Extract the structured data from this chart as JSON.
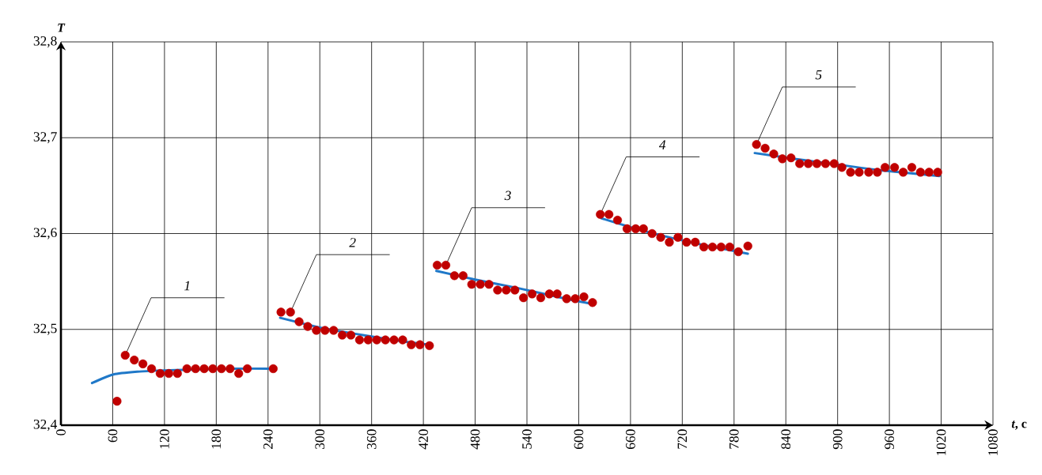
{
  "chart_data": {
    "type": "scatter",
    "xlabel": "*t*, c",
    "ylabel": "T",
    "xlim": [
      0,
      1080
    ],
    "ylim": [
      32.4,
      32.8
    ],
    "xticks": [
      0,
      60,
      120,
      180,
      240,
      300,
      360,
      420,
      480,
      540,
      600,
      660,
      720,
      780,
      840,
      900,
      960,
      1020,
      1080
    ],
    "yticks": [
      {
        "value": 32.4,
        "label": "32,4"
      },
      {
        "value": 32.5,
        "label": "32,5"
      },
      {
        "value": 32.6,
        "label": "32,6"
      },
      {
        "value": 32.7,
        "label": "32,7"
      },
      {
        "value": 32.8,
        "label": "32,8"
      }
    ],
    "grid": true,
    "series": [
      {
        "type": "line",
        "color": "#1f78c8",
        "x": [
          36,
          61,
          91,
          113,
          150,
          200,
          241
        ],
        "values": [
          32.444,
          32.453,
          32.456,
          32.457,
          32.458,
          32.459,
          32.459
        ]
      },
      {
        "type": "line",
        "color": "#1f78c8",
        "x": [
          254,
          300,
          350,
          400,
          427
        ],
        "values": [
          32.512,
          32.502,
          32.494,
          32.487,
          32.484
        ]
      },
      {
        "type": "line",
        "color": "#1f78c8",
        "x": [
          435,
          480,
          530,
          580,
          613
        ],
        "values": [
          32.561,
          32.552,
          32.543,
          32.533,
          32.527
        ]
      },
      {
        "type": "line",
        "color": "#1f78c8",
        "x": [
          626,
          670,
          710,
          750,
          796
        ],
        "values": [
          32.616,
          32.604,
          32.595,
          32.587,
          32.579
        ]
      },
      {
        "type": "line",
        "color": "#1f78c8",
        "x": [
          804,
          850,
          900,
          950,
          1018
        ],
        "values": [
          32.684,
          32.678,
          32.672,
          32.666,
          32.66
        ]
      },
      {
        "color": "#c00000",
        "x": [
          65,
          74.5,
          85,
          95,
          105,
          115,
          125,
          135,
          146,
          156,
          166,
          176,
          186,
          196,
          206,
          216,
          246,
          255,
          266,
          276,
          286,
          296,
          306,
          316,
          326,
          336,
          346,
          356,
          366,
          376,
          386,
          396,
          406,
          416,
          427,
          436,
          446,
          456,
          466,
          476,
          486,
          496,
          506,
          516,
          526,
          536,
          546,
          556,
          566,
          575,
          586,
          596,
          606,
          616,
          625,
          635,
          645,
          656,
          666,
          675,
          685,
          695,
          705,
          715,
          725,
          735,
          745,
          755,
          765,
          775,
          785,
          796,
          806,
          816,
          826,
          836,
          846,
          856,
          866,
          876,
          886,
          896,
          905,
          915,
          925,
          936,
          946,
          955,
          966,
          976,
          986,
          996,
          1006,
          1016
        ],
        "values": [
          32.425,
          32.473,
          32.468,
          32.464,
          32.459,
          32.454,
          32.454,
          32.454,
          32.459,
          32.459,
          32.459,
          32.459,
          32.459,
          32.459,
          32.454,
          32.459,
          32.459,
          32.518,
          32.518,
          32.508,
          32.503,
          32.499,
          32.499,
          32.499,
          32.494,
          32.494,
          32.489,
          32.489,
          32.489,
          32.489,
          32.489,
          32.489,
          32.484,
          32.484,
          32.483,
          32.567,
          32.567,
          32.556,
          32.556,
          32.547,
          32.547,
          32.547,
          32.541,
          32.541,
          32.541,
          32.533,
          32.537,
          32.533,
          32.537,
          32.537,
          32.532,
          32.532,
          32.534,
          32.528,
          32.62,
          32.62,
          32.614,
          32.605,
          32.605,
          32.605,
          32.6,
          32.596,
          32.591,
          32.596,
          32.591,
          32.591,
          32.586,
          32.586,
          32.586,
          32.586,
          32.581,
          32.587,
          32.693,
          32.689,
          32.683,
          32.678,
          32.679,
          32.673,
          32.673,
          32.673,
          32.673,
          32.673,
          32.669,
          32.664,
          32.664,
          32.664,
          32.664,
          32.669,
          32.669,
          32.664,
          32.669,
          32.664,
          32.664,
          32.664
        ]
      }
    ],
    "annotations": [
      {
        "text": "1",
        "x": 74.5,
        "y": 32.473
      },
      {
        "text": "2",
        "x": 266,
        "y": 32.518
      },
      {
        "text": "3",
        "x": 446,
        "y": 32.567
      },
      {
        "text": "4",
        "x": 625,
        "y": 32.62
      },
      {
        "text": "5",
        "x": 806,
        "y": 32.693
      }
    ]
  }
}
